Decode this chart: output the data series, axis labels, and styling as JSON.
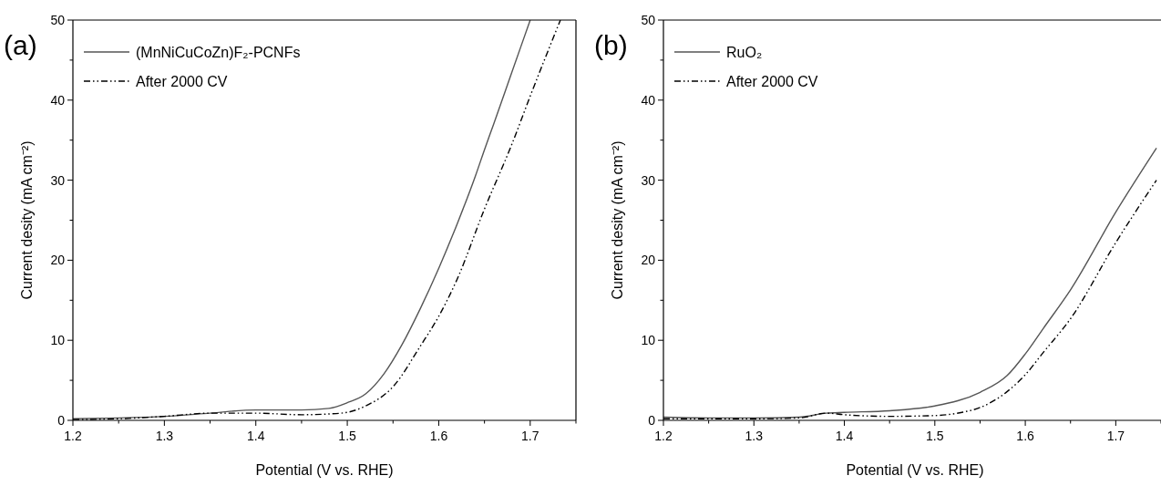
{
  "chart_data": [
    {
      "type": "line",
      "annotations": [
        "(a)"
      ],
      "xlabel": "Potential (V vs. RHE)",
      "ylabel": "Current desity (mA cm⁻²)",
      "xlim": [
        1.2,
        1.75
      ],
      "ylim": [
        0,
        50
      ],
      "xticks": [
        1.2,
        1.3,
        1.4,
        1.5,
        1.6,
        1.7
      ],
      "yticks": [
        0,
        10,
        20,
        30,
        40,
        50
      ],
      "legend": "top left",
      "grid": false,
      "series": [
        {
          "name": "(MnNiCuCoZn)F₂-PCNFs",
          "color": "#555555",
          "line_style": "solid",
          "x": [
            1.2,
            1.25,
            1.3,
            1.35,
            1.4,
            1.45,
            1.48,
            1.5,
            1.52,
            1.54,
            1.56,
            1.58,
            1.6,
            1.62,
            1.64,
            1.65,
            1.66,
            1.68,
            1.7
          ],
          "values": [
            0.2,
            0.3,
            0.5,
            0.9,
            1.3,
            1.3,
            1.5,
            2.2,
            3.3,
            5.8,
            9.5,
            14,
            19,
            24.5,
            30.5,
            33.8,
            37,
            43.5,
            50
          ]
        },
        {
          "name": "After 2000 CV",
          "color": "#000000",
          "line_style": "dashed",
          "x": [
            1.2,
            1.25,
            1.3,
            1.35,
            1.4,
            1.45,
            1.48,
            1.5,
            1.52,
            1.55,
            1.58,
            1.6,
            1.62,
            1.65,
            1.68,
            1.7,
            1.733
          ],
          "values": [
            0.1,
            0.2,
            0.5,
            0.9,
            0.9,
            0.7,
            0.8,
            1.0,
            1.8,
            4.2,
            9.3,
            13,
            17.6,
            26.4,
            34.5,
            40.5,
            50
          ]
        }
      ]
    },
    {
      "type": "line",
      "annotations": [
        "(b)"
      ],
      "xlabel": "Potential (V vs. RHE)",
      "ylabel": "Current desity (mA cm⁻²)",
      "xlim": [
        1.2,
        1.75
      ],
      "ylim": [
        0,
        50
      ],
      "xticks": [
        1.2,
        1.3,
        1.4,
        1.5,
        1.6,
        1.7
      ],
      "yticks": [
        0,
        10,
        20,
        30,
        40,
        50
      ],
      "legend": "top left",
      "grid": false,
      "series": [
        {
          "name": "RuO₂",
          "color": "#555555",
          "line_style": "solid",
          "x": [
            1.2,
            1.25,
            1.3,
            1.35,
            1.38,
            1.4,
            1.45,
            1.5,
            1.55,
            1.58,
            1.6,
            1.62,
            1.65,
            1.7,
            1.745
          ],
          "values": [
            0.4,
            0.3,
            0.3,
            0.4,
            0.9,
            1.0,
            1.2,
            1.8,
            3.5,
            5.6,
            8.3,
            11.5,
            16.3,
            26,
            34
          ]
        },
        {
          "name": "After 2000 CV",
          "color": "#000000",
          "line_style": "dashed",
          "x": [
            1.2,
            1.25,
            1.3,
            1.35,
            1.38,
            1.4,
            1.45,
            1.5,
            1.53,
            1.55,
            1.58,
            1.6,
            1.62,
            1.65,
            1.7,
            1.745
          ],
          "values": [
            0.2,
            0.2,
            0.2,
            0.3,
            0.9,
            0.7,
            0.5,
            0.6,
            1.0,
            1.6,
            3.6,
            5.7,
            8.5,
            12.7,
            22.2,
            30
          ]
        }
      ]
    }
  ]
}
